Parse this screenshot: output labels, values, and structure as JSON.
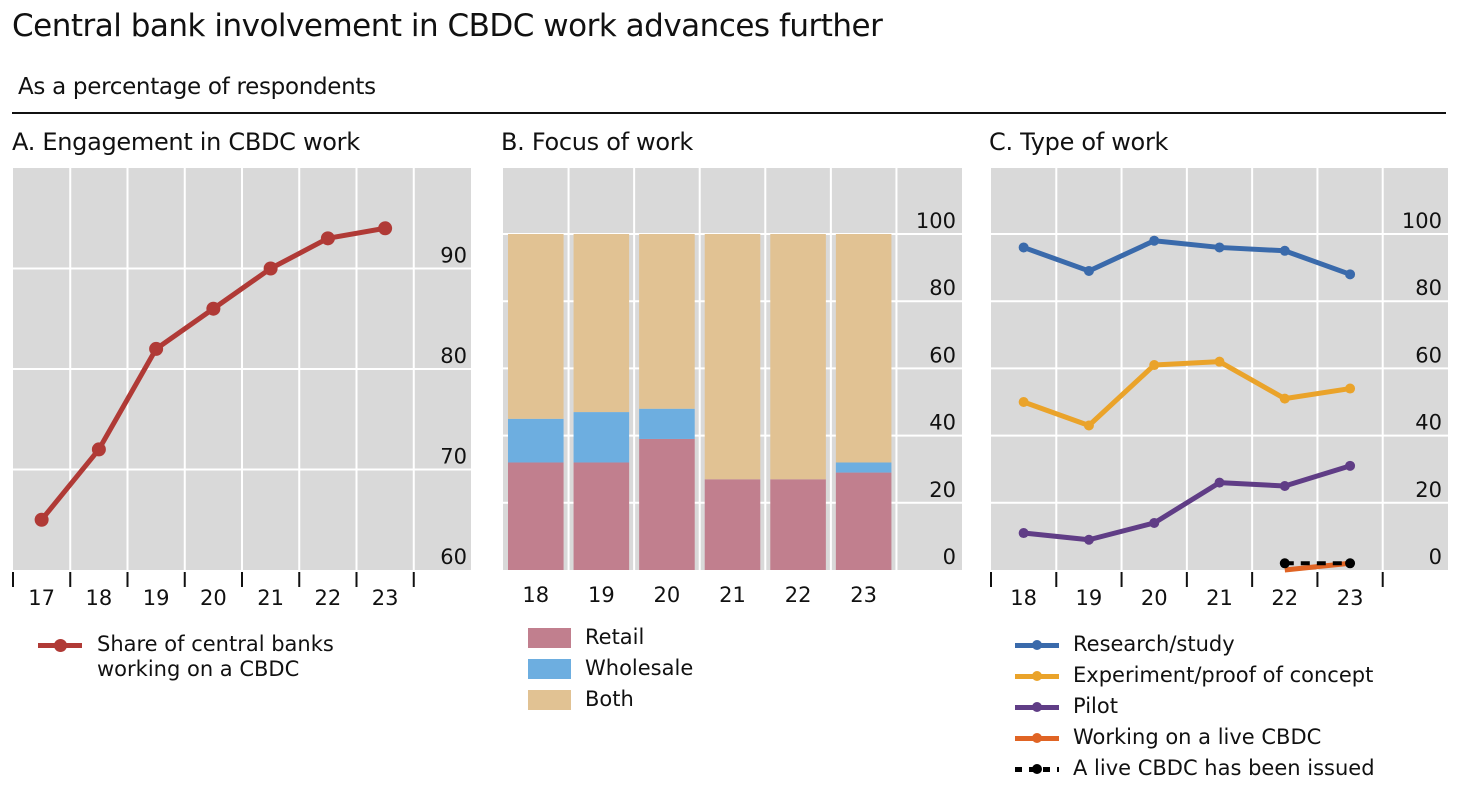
{
  "header": {
    "title": "Central bank involvement in CBDC work advances further",
    "subtitle": "As a percentage of respondents"
  },
  "chart_data": [
    {
      "id": "A",
      "type": "line",
      "title": "A. Engagement in CBDC work",
      "categories": [
        "17",
        "18",
        "19",
        "20",
        "21",
        "22",
        "23"
      ],
      "series": [
        {
          "name": "Share of central banks working on a CBDC",
          "legend_lines": [
            "Share of central banks",
            "working on a CBDC"
          ],
          "color": "#b03a36",
          "values": [
            65,
            72,
            82,
            86,
            90,
            93,
            94
          ]
        }
      ],
      "ylim": [
        60,
        100
      ],
      "yticks": [
        60,
        70,
        80,
        90
      ],
      "yaxis_side": "right",
      "grid": true,
      "legend_position": "bottom"
    },
    {
      "id": "B",
      "type": "bar",
      "stacked": true,
      "title": "B. Focus of work",
      "categories": [
        "18",
        "19",
        "20",
        "21",
        "22",
        "23"
      ],
      "series": [
        {
          "name": "Retail",
          "color": "#c17f8e",
          "values": [
            32,
            32,
            39,
            27,
            27,
            29
          ]
        },
        {
          "name": "Wholesale",
          "color": "#6daee0",
          "values": [
            13,
            15,
            9,
            0,
            0,
            3
          ]
        },
        {
          "name": "Both",
          "color": "#e1c293",
          "values": [
            55,
            53,
            52,
            73,
            73,
            68
          ]
        }
      ],
      "ylim": [
        0,
        115
      ],
      "yticks": [
        0,
        20,
        40,
        60,
        80,
        100
      ],
      "yaxis_side": "right",
      "grid": true,
      "legend_position": "bottom"
    },
    {
      "id": "C",
      "type": "line",
      "title": "C. Type of work",
      "categories": [
        "18",
        "19",
        "20",
        "21",
        "22",
        "23"
      ],
      "series": [
        {
          "name": "Research/study",
          "color": "#3a6aab",
          "values": [
            96,
            89,
            98,
            96,
            95,
            88
          ]
        },
        {
          "name": "Experiment/proof of concept",
          "color": "#eaa32a",
          "values": [
            50,
            43,
            61,
            62,
            51,
            54
          ]
        },
        {
          "name": "Pilot",
          "color": "#603d86",
          "values": [
            11,
            9,
            14,
            26,
            25,
            31
          ]
        },
        {
          "name": "Working on a live CBDC",
          "color": "#e06424",
          "values": [
            null,
            null,
            null,
            null,
            0,
            2
          ]
        },
        {
          "name": "A live CBDC has been issued",
          "color": "#000000",
          "dashed": true,
          "values": [
            null,
            null,
            null,
            null,
            2,
            2
          ]
        }
      ],
      "ylim": [
        -2,
        115
      ],
      "yticks": [
        0,
        20,
        40,
        60,
        80,
        100
      ],
      "yaxis_side": "right",
      "grid": true,
      "legend_position": "bottom"
    }
  ]
}
